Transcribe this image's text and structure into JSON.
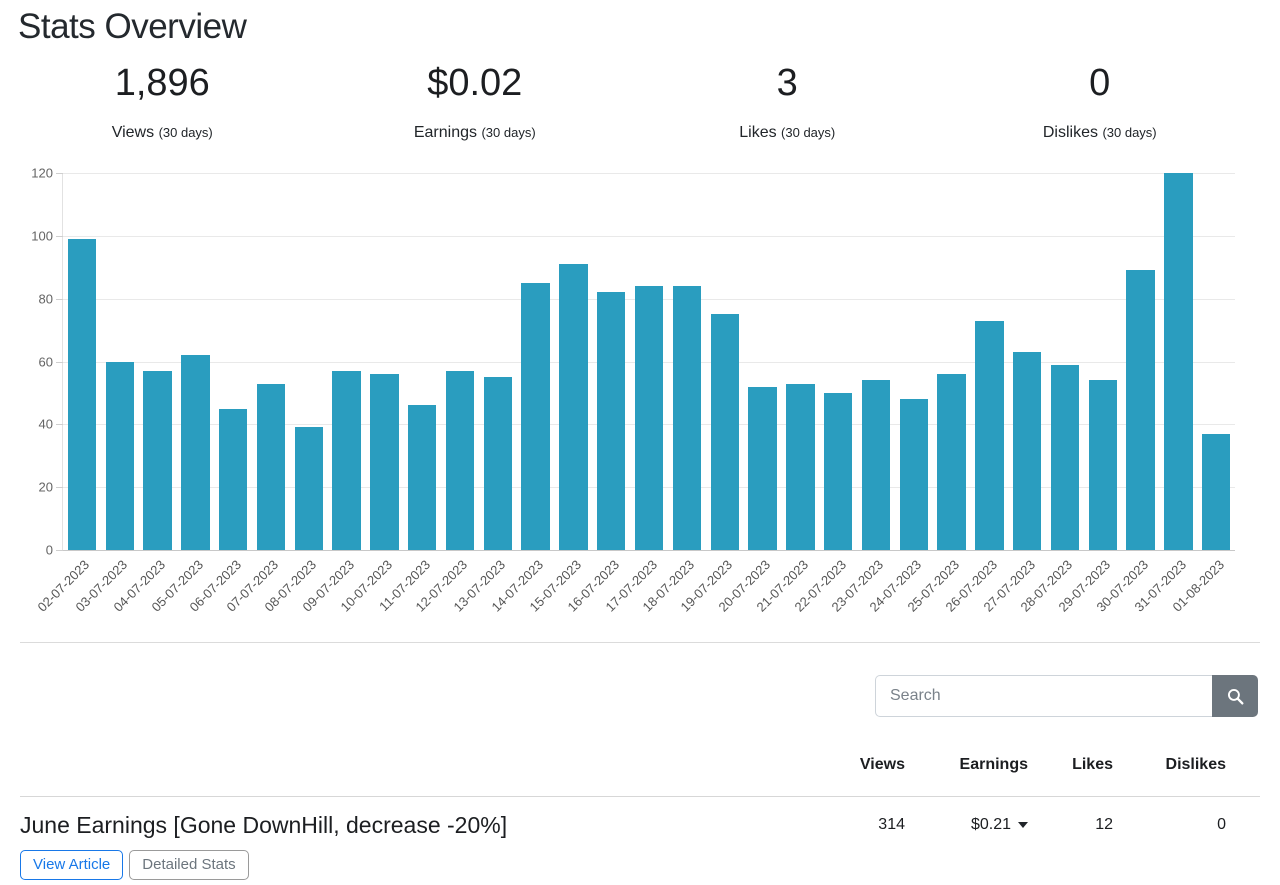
{
  "page": {
    "title": "Stats Overview"
  },
  "stats": [
    {
      "value": "1,896",
      "label": "Views",
      "period": "(30 days)"
    },
    {
      "value": "$0.02",
      "label": "Earnings",
      "period": "(30 days)"
    },
    {
      "value": "3",
      "label": "Likes",
      "period": "(30 days)"
    },
    {
      "value": "0",
      "label": "Dislikes",
      "period": "(30 days)"
    }
  ],
  "chart_data": {
    "type": "bar",
    "title": "",
    "xlabel": "",
    "ylabel": "",
    "categories": [
      "02-07-2023",
      "03-07-2023",
      "04-07-2023",
      "05-07-2023",
      "06-07-2023",
      "07-07-2023",
      "08-07-2023",
      "09-07-2023",
      "10-07-2023",
      "11-07-2023",
      "12-07-2023",
      "13-07-2023",
      "14-07-2023",
      "15-07-2023",
      "16-07-2023",
      "17-07-2023",
      "18-07-2023",
      "19-07-2023",
      "20-07-2023",
      "21-07-2023",
      "22-07-2023",
      "23-07-2023",
      "24-07-2023",
      "25-07-2023",
      "26-07-2023",
      "27-07-2023",
      "28-07-2023",
      "29-07-2023",
      "30-07-2023",
      "31-07-2023",
      "01-08-2023"
    ],
    "values": [
      99,
      60,
      57,
      62,
      45,
      53,
      39,
      57,
      56,
      46,
      57,
      55,
      85,
      91,
      82,
      84,
      84,
      75,
      52,
      53,
      50,
      54,
      48,
      56,
      73,
      63,
      59,
      54,
      89,
      120,
      37
    ],
    "ylim": [
      0,
      120
    ],
    "yticks": [
      0,
      20,
      40,
      60,
      80,
      100,
      120
    ],
    "bar_color": "#2a9dbf",
    "grid": true,
    "legend": false
  },
  "search": {
    "placeholder": "Search"
  },
  "table": {
    "columns": [
      "Views",
      "Earnings",
      "Likes",
      "Dislikes"
    ],
    "rows": [
      {
        "title": "June Earnings [Gone DownHill, decrease -20%]",
        "views": "314",
        "earnings": "$0.21",
        "likes": "12",
        "dislikes": "0",
        "buttons": [
          "View Article",
          "Detailed Stats"
        ]
      }
    ]
  }
}
